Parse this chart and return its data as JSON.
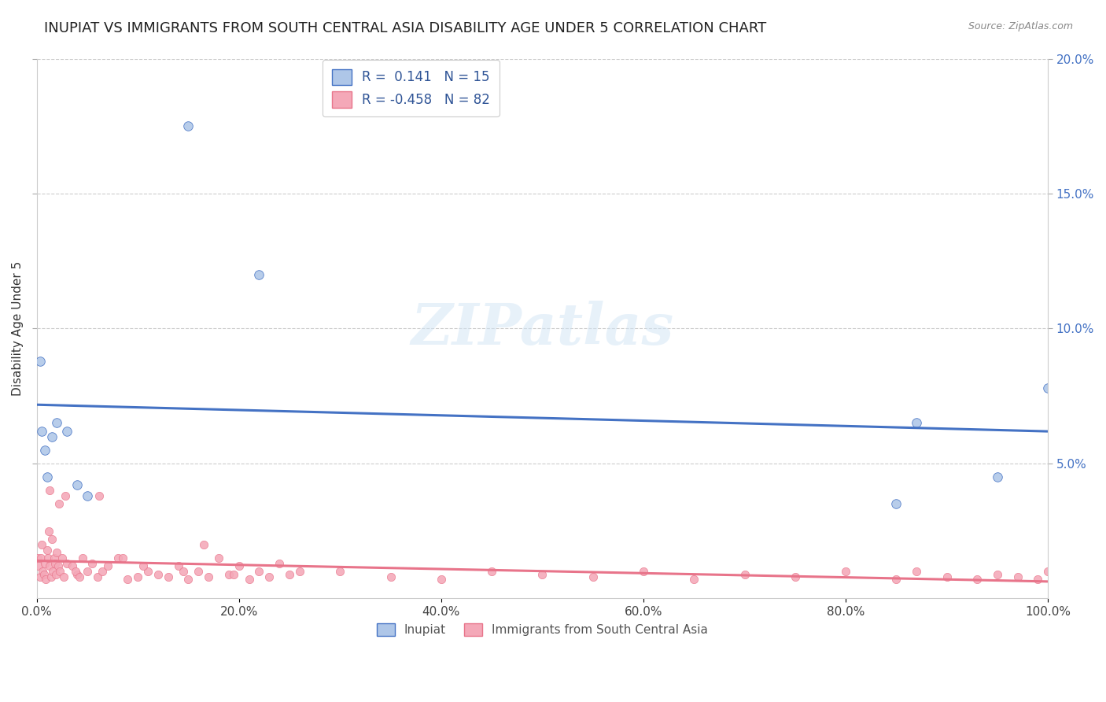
{
  "title": "INUPIAT VS IMMIGRANTS FROM SOUTH CENTRAL ASIA DISABILITY AGE UNDER 5 CORRELATION CHART",
  "source_text": "Source: ZipAtlas.com",
  "ylabel": "Disability Age Under 5",
  "xlabel": "",
  "xlim": [
    0,
    100
  ],
  "ylim": [
    0,
    20
  ],
  "xtick_labels": [
    "0.0%",
    "20.0%",
    "40.0%",
    "60.0%",
    "80.0%",
    "100.0%"
  ],
  "xtick_vals": [
    0,
    20,
    40,
    60,
    80,
    100
  ],
  "ytick_vals": [
    5,
    10,
    15,
    20
  ],
  "right_ytick_labels": [
    "5.0%",
    "10.0%",
    "15.0%",
    "20.0%"
  ],
  "right_ytick_vals": [
    5,
    10,
    15,
    20
  ],
  "inupiat_R": 0.141,
  "inupiat_N": 15,
  "immigrants_R": -0.458,
  "immigrants_N": 82,
  "inupiat_color": "#aec6e8",
  "immigrants_color": "#f4a8b8",
  "inupiat_line_color": "#4472c4",
  "immigrants_line_color": "#e8748a",
  "legend_text_color": "#2f5496",
  "title_fontsize": 13,
  "axis_label_fontsize": 11,
  "tick_fontsize": 11,
  "watermark_color": "#d0e4f5",
  "watermark_text": "ZIPatlas",
  "inupiat_x": [
    0.3,
    0.5,
    0.8,
    1.0,
    1.5,
    2.0,
    3.0,
    4.0,
    5.0,
    15.0,
    22.0,
    85.0,
    87.0,
    95.0,
    100.0
  ],
  "inupiat_y": [
    8.8,
    6.2,
    5.5,
    4.5,
    6.0,
    6.5,
    6.2,
    4.2,
    3.8,
    17.5,
    12.0,
    3.5,
    6.5,
    4.5,
    7.8
  ],
  "immigrants_x": [
    0.1,
    0.2,
    0.3,
    0.4,
    0.5,
    0.6,
    0.7,
    0.8,
    0.9,
    1.0,
    1.1,
    1.2,
    1.3,
    1.4,
    1.5,
    1.6,
    1.7,
    1.8,
    1.9,
    2.0,
    2.1,
    2.2,
    2.3,
    2.5,
    2.7,
    3.0,
    3.5,
    4.0,
    4.5,
    5.0,
    5.5,
    6.0,
    6.5,
    7.0,
    8.0,
    9.0,
    10.0,
    11.0,
    12.0,
    13.0,
    14.0,
    15.0,
    16.0,
    17.0,
    18.0,
    19.0,
    20.0,
    21.0,
    22.0,
    23.0,
    24.0,
    25.0,
    30.0,
    35.0,
    40.0,
    45.0,
    50.0,
    55.0,
    60.0,
    65.0,
    70.0,
    75.0,
    80.0,
    85.0,
    87.0,
    90.0,
    93.0,
    95.0,
    97.0,
    99.0,
    100.0,
    3.8,
    4.2,
    6.2,
    8.5,
    19.5,
    10.5,
    14.5,
    16.5,
    26.0,
    2.8,
    1.3
  ],
  "immigrants_y": [
    1.5,
    1.2,
    0.8,
    1.5,
    2.0,
    1.0,
    0.9,
    1.3,
    0.7,
    1.8,
    1.5,
    2.5,
    1.2,
    0.8,
    2.2,
    1.0,
    1.5,
    1.3,
    0.9,
    1.7,
    1.2,
    3.5,
    1.0,
    1.5,
    0.8,
    1.3,
    1.2,
    0.9,
    1.5,
    1.0,
    1.3,
    0.8,
    1.0,
    1.2,
    1.5,
    0.7,
    0.8,
    1.0,
    0.9,
    0.8,
    1.2,
    0.7,
    1.0,
    0.8,
    1.5,
    0.9,
    1.2,
    0.7,
    1.0,
    0.8,
    1.3,
    0.9,
    1.0,
    0.8,
    0.7,
    1.0,
    0.9,
    0.8,
    1.0,
    0.7,
    0.9,
    0.8,
    1.0,
    0.7,
    1.0,
    0.8,
    0.7,
    0.9,
    0.8,
    0.7,
    1.0,
    1.0,
    0.8,
    3.8,
    1.5,
    0.9,
    1.2,
    1.0,
    2.0,
    1.0,
    3.8,
    4.0
  ]
}
